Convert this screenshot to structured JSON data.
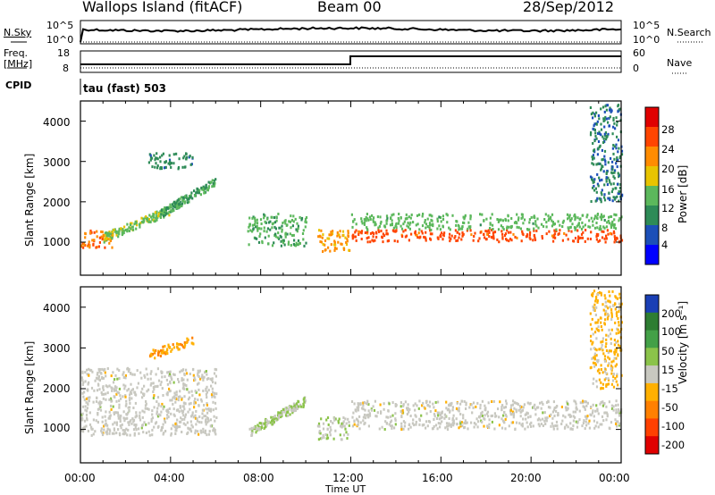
{
  "header": {
    "station": "Wallops Island (fitACF)",
    "beam": "Beam 00",
    "date": "28/Sep/2012"
  },
  "top_panels": {
    "nsky_label": "N.Sky",
    "nsky_top": "10^5",
    "nsky_bottom": "10^0",
    "nsearch_label": "N.Search",
    "nsearch_top": "10^5",
    "nsearch_bottom": "10^0",
    "freq_label_1": "Freq.",
    "freq_label_2": "[MHz]",
    "freq_top": "18",
    "freq_bottom": "8",
    "nave_label": "Nave",
    "nave_top": "60",
    "nave_bottom": "0",
    "cpid_label": "CPID",
    "cpid_text": "tau (fast) 503"
  },
  "x_axis": {
    "label": "Time UT",
    "ticks": [
      "00:00",
      "04:00",
      "08:00",
      "12:00",
      "16:00",
      "20:00",
      "00:00"
    ]
  },
  "power_panel": {
    "ylabel": "Slant Range [km]",
    "yticks": [
      "1000",
      "2000",
      "3000",
      "4000"
    ],
    "colorbar_label": "Power [dB]",
    "colorbar_ticks": [
      "4",
      "8",
      "12",
      "16",
      "20",
      "24",
      "28"
    ],
    "colors": [
      "#0000ff",
      "#1c4fb8",
      "#2e8b57",
      "#5cb85c",
      "#e8c400",
      "#ff8c00",
      "#ff4500",
      "#e00000"
    ]
  },
  "velocity_panel": {
    "ylabel": "Slant Range [km]",
    "yticks": [
      "1000",
      "2000",
      "3000",
      "4000"
    ],
    "colorbar_label": "Velocity [m s⁻¹]",
    "colorbar_ticks": [
      "200",
      "100",
      "50",
      "15",
      "-15",
      "-50",
      "-100",
      "-200"
    ],
    "colors": [
      "#1a3fb5",
      "#2e7d32",
      "#43a047",
      "#8bc34a",
      "#c8c8c0",
      "#ffb000",
      "#ff8000",
      "#ff4000",
      "#e00000"
    ]
  },
  "chart_data": [
    {
      "type": "heatmap",
      "title": "Wallops Island (fitACF) Beam 00 28/Sep/2012",
      "xlabel": "Time UT",
      "ylabel": "Slant Range [km]",
      "xlim": [
        0,
        24
      ],
      "ylim": [
        180,
        4500
      ],
      "colorbar": {
        "label": "Power [dB]",
        "range": [
          0,
          30
        ]
      },
      "regions": [
        {
          "t": [
            0.0,
            1.4
          ],
          "range": [
            850,
            1300
          ],
          "value": 22
        },
        {
          "t": [
            1.0,
            4.0
          ],
          "range": [
            1100,
            1800
          ],
          "value": 14
        },
        {
          "t": [
            3.5,
            6.0
          ],
          "range": [
            1700,
            2500
          ],
          "value": 11
        },
        {
          "t": [
            3.0,
            5.0
          ],
          "range": [
            2800,
            3200
          ],
          "value": 9
        },
        {
          "t": [
            7.4,
            10.0
          ],
          "range": [
            900,
            1700
          ],
          "value": 12
        },
        {
          "t": [
            10.5,
            11.9
          ],
          "range": [
            750,
            1300
          ],
          "value": 20
        },
        {
          "t": [
            12.0,
            24.0
          ],
          "range": [
            1000,
            1300
          ],
          "value": 24
        },
        {
          "t": [
            12.0,
            24.0
          ],
          "range": [
            1300,
            1700
          ],
          "value": 13
        },
        {
          "t": [
            22.6,
            24.0
          ],
          "range": [
            2000,
            4400
          ],
          "value": 8
        }
      ]
    },
    {
      "type": "heatmap",
      "xlabel": "Time UT",
      "ylabel": "Slant Range [km]",
      "xlim": [
        0,
        24
      ],
      "ylim": [
        180,
        4500
      ],
      "colorbar": {
        "label": "Velocity [m s⁻¹]",
        "range": [
          -250,
          250
        ]
      },
      "regions": [
        {
          "t": [
            0.0,
            6.0
          ],
          "range": [
            850,
            2500
          ],
          "value": 0
        },
        {
          "t": [
            3.0,
            5.0
          ],
          "range": [
            2800,
            3200
          ],
          "value": -80
        },
        {
          "t": [
            7.4,
            10.0
          ],
          "range": [
            900,
            1700
          ],
          "value": 30
        },
        {
          "t": [
            10.5,
            11.9
          ],
          "range": [
            750,
            1300
          ],
          "value": 25
        },
        {
          "t": [
            12.0,
            24.0
          ],
          "range": [
            1000,
            1700
          ],
          "value": 0
        },
        {
          "t": [
            22.6,
            24.0
          ],
          "range": [
            2000,
            4400
          ],
          "value": -40
        }
      ]
    }
  ]
}
